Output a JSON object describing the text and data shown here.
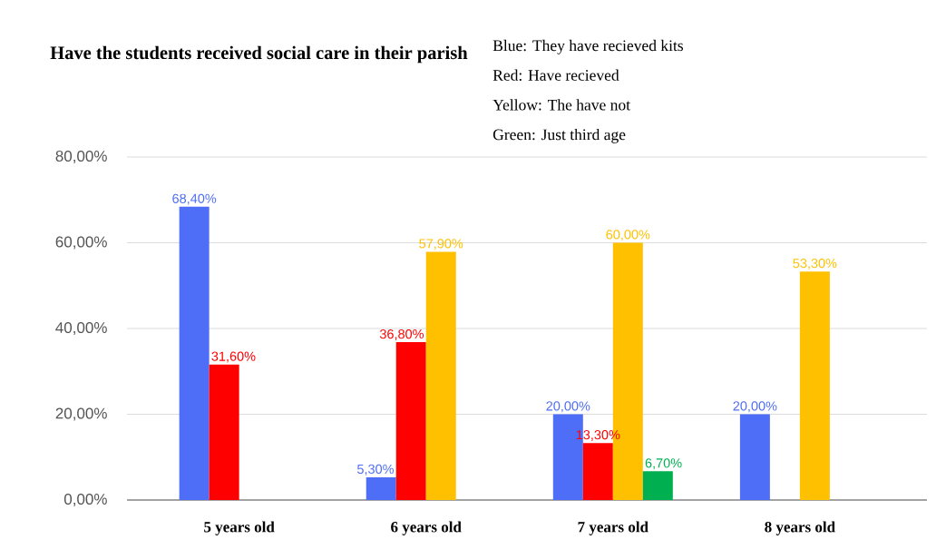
{
  "chart_data": {
    "type": "bar",
    "title": "Have the students received social care in their parish",
    "annotations": [
      "Blue: They have recieved kits",
      "Red: Have recieved",
      "Yellow: The have not",
      "Green: Just third age"
    ],
    "categories": [
      "5 years old",
      "6 years old",
      "7 years old",
      "8 years old"
    ],
    "series": [
      {
        "color": "#4f6ef7",
        "values": [
          68.4,
          5.3,
          20,
          20
        ],
        "value_labels": [
          "68,40%",
          "5,30%",
          "20,00%",
          "20,00%"
        ]
      },
      {
        "color": "#ff0000",
        "values": [
          31.6,
          36.8,
          13.3,
          null
        ],
        "value_labels": [
          "31,60%",
          "36,80%",
          "13,30%",
          null
        ]
      },
      {
        "color": "#ffc000",
        "values": [
          null,
          57.9,
          60,
          53.3
        ],
        "value_labels": [
          null,
          "57,90%",
          "60,00%",
          "53,30%"
        ]
      },
      {
        "color": "#00b050",
        "values": [
          null,
          null,
          6.7,
          null
        ],
        "value_labels": [
          null,
          null,
          "6,70%",
          null
        ]
      }
    ],
    "ylim": [
      0,
      80
    ],
    "yticks": [
      {
        "value": 0,
        "label": "0,00%"
      },
      {
        "value": 20,
        "label": "20,00%"
      },
      {
        "value": 40,
        "label": "40,00%"
      },
      {
        "value": 60,
        "label": "60,00%"
      },
      {
        "value": 80,
        "label": "80,00%"
      }
    ],
    "grid": "y"
  }
}
